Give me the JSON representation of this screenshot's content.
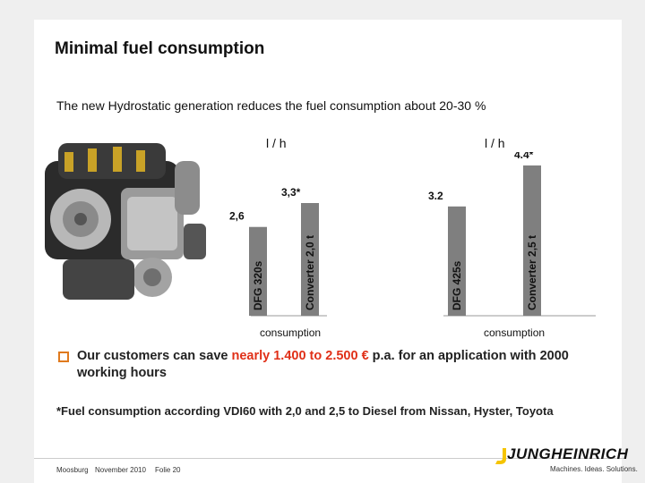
{
  "title": "Minimal fuel consumption",
  "subtitle": "The new Hydrostatic generation reduces the fuel consumption about 20-30 %",
  "bullet": {
    "prefix": "Our customers can save ",
    "highlight": "nearly 1.400 to 2.500 €",
    "suffix": " p.a. for an application with 2000 working hours"
  },
  "footnote": "*Fuel consumption according VDI60 with 2,0 and 2,5 to Diesel from Nissan, Hyster, Toyota",
  "footer": {
    "location": "Moosburg",
    "date": "November 2010",
    "slide": "Folie 20"
  },
  "logo": {
    "name": "JUNGHEINRICH",
    "tagline": "Machines. Ideas. Solutions."
  },
  "colors": {
    "bar": "#7f7f7f",
    "accent": "#e03018",
    "bullet": "#e07a1e",
    "brand": "#f5c400"
  },
  "chart_data": [
    {
      "type": "bar",
      "unit_label": "l / h",
      "xlabel": "consumption",
      "categories": [
        "DFG 320s",
        "Converter 2,0 t"
      ],
      "values": [
        2.6,
        3.3
      ],
      "value_labels": [
        "2,6",
        "3,3*"
      ],
      "ylim": [
        0,
        4.4
      ]
    },
    {
      "type": "bar",
      "unit_label": "l / h",
      "xlabel": "consumption",
      "categories": [
        "DFG 425s",
        "Converter  2,5 t"
      ],
      "values": [
        3.2,
        4.4
      ],
      "value_labels": [
        "3.2",
        "4.4*"
      ],
      "ylim": [
        0,
        4.4
      ]
    }
  ]
}
